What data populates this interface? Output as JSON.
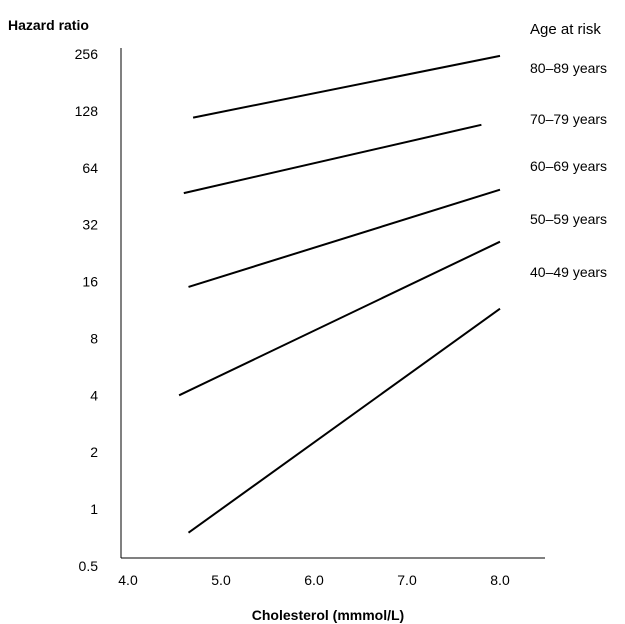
{
  "chart_data": {
    "type": "line",
    "title": "",
    "ylabel": "Hazard ratio",
    "xlabel": "Cholesterol (mmmol/L)",
    "y_scale": "log2",
    "ylim": [
      0.5,
      256
    ],
    "xlim": [
      4.0,
      8.0
    ],
    "y_ticks": [
      "0.5",
      "1",
      "2",
      "4",
      "8",
      "16",
      "32",
      "64",
      "128",
      "256"
    ],
    "x_ticks": [
      "4.0",
      "5.0",
      "6.0",
      "7.0",
      "8.0"
    ],
    "legend_title": "Age at risk",
    "legend_placement": "right",
    "grid": false,
    "line_color": "#000000",
    "series": [
      {
        "name": "80–89 years",
        "x": [
          4.7,
          8.0
        ],
        "y": [
          118,
          250
        ]
      },
      {
        "name": "70–79 years",
        "x": [
          4.6,
          7.8
        ],
        "y": [
          47,
          108
        ]
      },
      {
        "name": "60–69 years",
        "x": [
          4.65,
          8.0
        ],
        "y": [
          15,
          49
        ]
      },
      {
        "name": "50–59 years",
        "x": [
          4.55,
          8.0
        ],
        "y": [
          4.0,
          26
        ]
      },
      {
        "name": "40–49 years",
        "x": [
          4.65,
          8.0
        ],
        "y": [
          0.75,
          11.5
        ]
      }
    ]
  }
}
